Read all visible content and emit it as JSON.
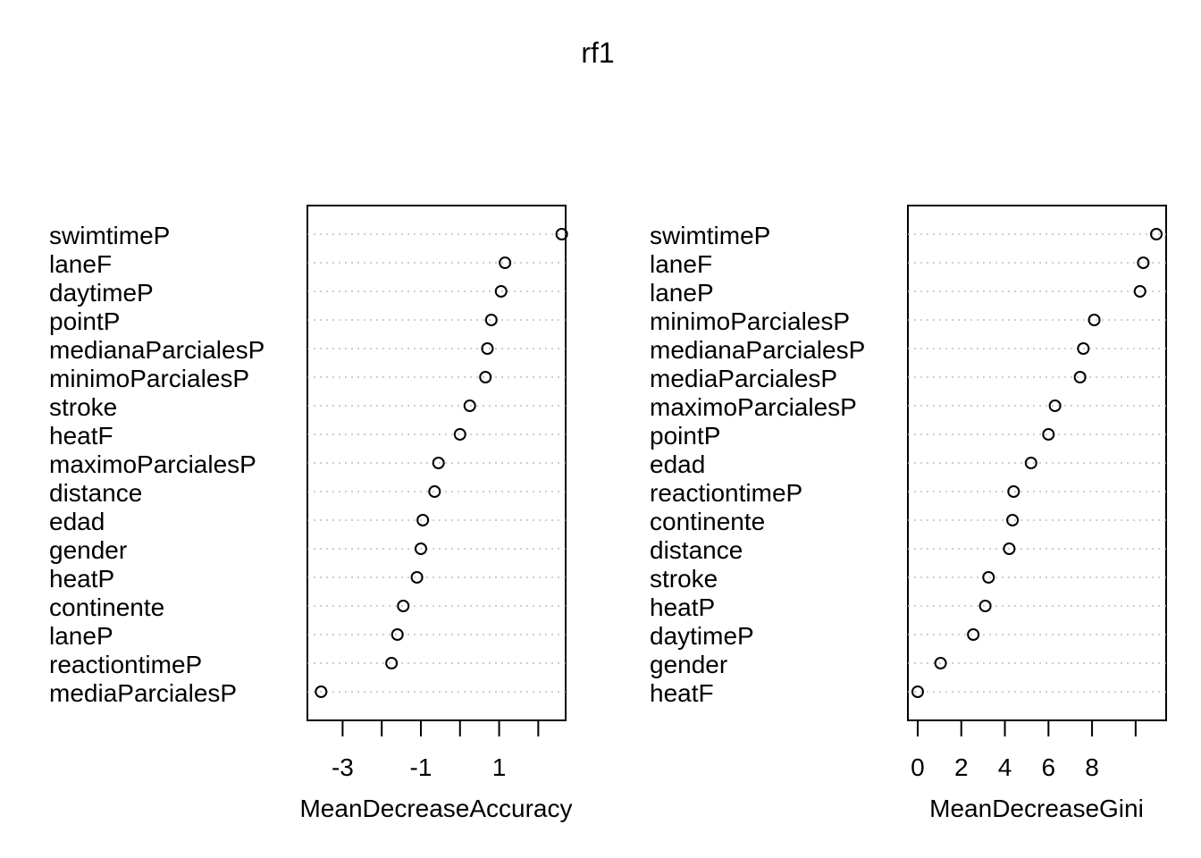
{
  "title": "rf1",
  "chart_data": [
    {
      "type": "scatter",
      "subtype": "dotchart",
      "xlabel": "MeanDecreaseAccuracy",
      "ylabel": "",
      "xlim": [
        -3.9,
        2.7
      ],
      "ticks": [
        -3,
        -2,
        -1,
        0,
        1,
        2
      ],
      "tick_labels": [
        "-3",
        "",
        "-1",
        "",
        "1",
        ""
      ],
      "grid": "dotted-horizontal",
      "categories": [
        "swimtimeP",
        "laneF",
        "daytimeP",
        "pointP",
        "medianaParcialesP",
        "minimoParcialesP",
        "stroke",
        "heatF",
        "maximoParcialesP",
        "distance",
        "edad",
        "gender",
        "heatP",
        "continente",
        "laneP",
        "reactiontimeP",
        "mediaParcialesP"
      ],
      "values": [
        2.6,
        1.15,
        1.05,
        0.8,
        0.7,
        0.65,
        0.25,
        0.0,
        -0.55,
        -0.65,
        -0.95,
        -1.0,
        -1.1,
        -1.45,
        -1.6,
        -1.75,
        -3.55
      ]
    },
    {
      "type": "scatter",
      "subtype": "dotchart",
      "xlabel": "MeanDecreaseGini",
      "ylabel": "",
      "xlim": [
        -0.45,
        11.4
      ],
      "ticks": [
        0,
        2,
        4,
        6,
        8,
        10
      ],
      "tick_labels": [
        "0",
        "2",
        "4",
        "6",
        "8",
        ""
      ],
      "grid": "dotted-horizontal",
      "categories": [
        "swimtimeP",
        "laneF",
        "laneP",
        "minimoParcialesP",
        "medianaParcialesP",
        "mediaParcialesP",
        "maximoParcialesP",
        "pointP",
        "edad",
        "reactiontimeP",
        "continente",
        "distance",
        "stroke",
        "heatP",
        "daytimeP",
        "gender",
        "heatF"
      ],
      "values": [
        10.95,
        10.35,
        10.2,
        8.1,
        7.6,
        7.45,
        6.3,
        6.0,
        5.2,
        4.4,
        4.35,
        4.2,
        3.25,
        3.1,
        2.55,
        1.05,
        0.0
      ]
    }
  ]
}
